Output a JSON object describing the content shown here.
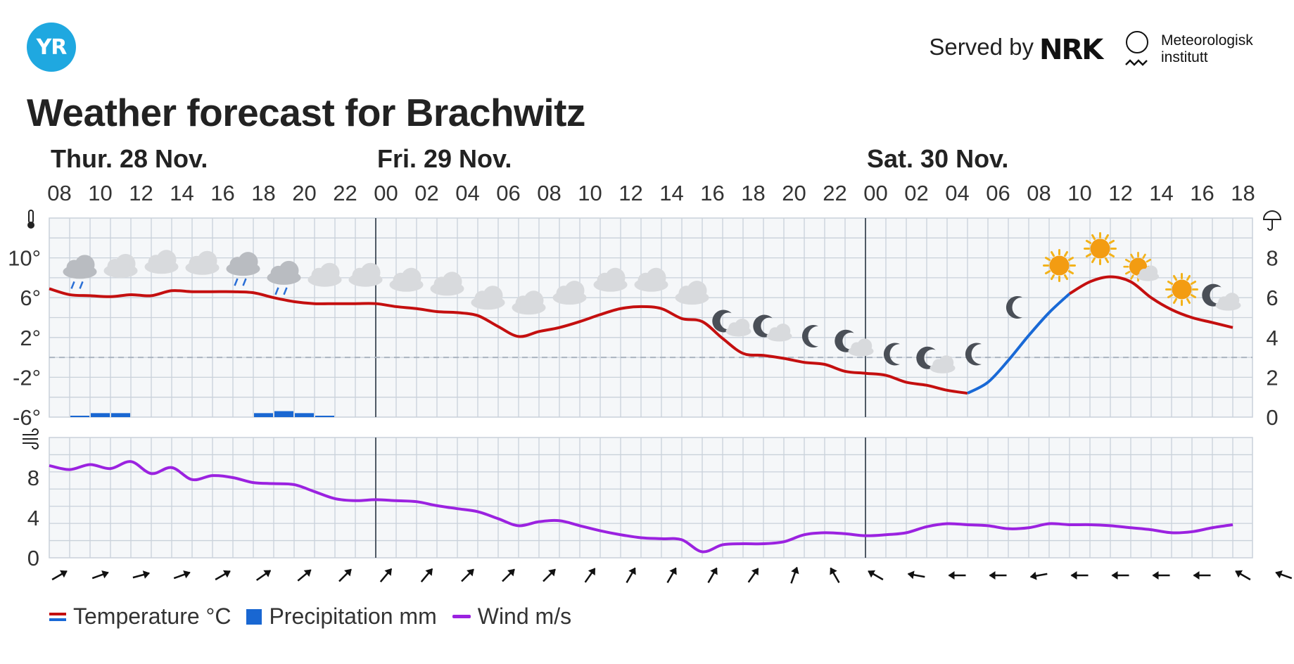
{
  "header": {
    "logo_text": "YR",
    "served_by": "Served by",
    "nrk_text": "NRK",
    "met_line1": "Meteorologisk",
    "met_line2": "institutt",
    "title": "Weather forecast for Brachwitz"
  },
  "legend": {
    "temperature": "Temperature °C",
    "precipitation": "Precipitation mm",
    "wind": "Wind m/s"
  },
  "colors": {
    "temp_warm": "#c40f0f",
    "temp_cold": "#1969d6",
    "precipitation": "#1967d2",
    "wind": "#9b22e0",
    "grid": "#c9d1da",
    "day_divider": "#505a66"
  },
  "chart_data": {
    "type": "line",
    "days": [
      {
        "label": "Thur. 28 Nov.",
        "start_hour_index": 0
      },
      {
        "label": "Fri. 29 Nov.",
        "start_hour_index": 16
      },
      {
        "label": "Sat. 30 Nov.",
        "start_hour_index": 40
      }
    ],
    "hour_ticks": [
      "08",
      "10",
      "12",
      "14",
      "16",
      "18",
      "20",
      "22",
      "00",
      "02",
      "04",
      "06",
      "08",
      "10",
      "12",
      "14",
      "16",
      "18",
      "20",
      "22",
      "00",
      "02",
      "04",
      "06",
      "08",
      "10",
      "12",
      "14",
      "16",
      "18"
    ],
    "x_hours_start": "Thur. 28 Nov. 07:00",
    "temperature": {
      "unit": "°C",
      "y_ticks": [
        "10°",
        "6°",
        "2°",
        "-2°",
        "-6°"
      ],
      "ylim": [
        -6,
        14
      ],
      "values": [
        6.9,
        6.3,
        6.2,
        6.1,
        6.3,
        6.2,
        6.7,
        6.6,
        6.6,
        6.6,
        6.5,
        6.0,
        5.6,
        5.4,
        5.4,
        5.4,
        5.4,
        5.1,
        4.9,
        4.6,
        4.5,
        4.2,
        3.1,
        2.1,
        2.6,
        3.0,
        3.6,
        4.3,
        4.9,
        5.1,
        4.9,
        3.9,
        3.6,
        1.9,
        0.4,
        0.2,
        -0.1,
        -0.5,
        -0.7,
        -1.4,
        -1.6,
        -1.8,
        -2.5,
        -2.8,
        -3.3,
        -3.6,
        -2.5,
        -0.3,
        2.2,
        4.5,
        6.4,
        7.6,
        8.1,
        7.6,
        6.0,
        4.8,
        4.0,
        3.5,
        3.0
      ],
      "cold_range_hour_indices": [
        45,
        50
      ]
    },
    "precipitation": {
      "unit": "mm",
      "right_ticks": [
        "8",
        "6",
        "4",
        "2",
        "0"
      ],
      "ylim": [
        0,
        10
      ],
      "bars": [
        {
          "hour_index": 1,
          "value": 0.05
        },
        {
          "hour_index": 2,
          "value": 0.2
        },
        {
          "hour_index": 3,
          "value": 0.2
        },
        {
          "hour_index": 10,
          "value": 0.2
        },
        {
          "hour_index": 11,
          "value": 0.3
        },
        {
          "hour_index": 12,
          "value": 0.2
        },
        {
          "hour_index": 13,
          "value": 0.05
        }
      ]
    },
    "wind": {
      "unit": "m/s",
      "y_ticks": [
        "8",
        "4",
        "0"
      ],
      "ylim": [
        0,
        12
      ],
      "values": [
        9.2,
        8.8,
        9.3,
        8.9,
        9.6,
        8.4,
        9.0,
        7.8,
        8.2,
        8.0,
        7.5,
        7.4,
        7.3,
        6.6,
        5.9,
        5.7,
        5.8,
        5.7,
        5.6,
        5.2,
        4.9,
        4.6,
        3.9,
        3.2,
        3.6,
        3.7,
        3.2,
        2.7,
        2.3,
        2.0,
        1.9,
        1.8,
        0.6,
        1.3,
        1.4,
        1.4,
        1.6,
        2.3,
        2.5,
        2.4,
        2.2,
        2.3,
        2.5,
        3.1,
        3.4,
        3.3,
        3.2,
        2.9,
        3.0,
        3.4,
        3.3,
        3.3,
        3.2,
        3.0,
        2.8,
        2.5,
        2.6,
        3.0,
        3.3
      ],
      "arrow_directions_deg": [
        240,
        250,
        255,
        250,
        240,
        235,
        230,
        225,
        220,
        220,
        225,
        225,
        225,
        215,
        210,
        210,
        210,
        215,
        200,
        150,
        120,
        100,
        90,
        90,
        80,
        90,
        90,
        90,
        90,
        120,
        110
      ]
    },
    "weather_symbols": [
      {
        "hour_index": 1.5,
        "symbol": "light-rain-icon"
      },
      {
        "hour_index": 3.5,
        "symbol": "cloudy-icon"
      },
      {
        "hour_index": 5.5,
        "symbol": "cloudy-icon"
      },
      {
        "hour_index": 7.5,
        "symbol": "cloudy-icon"
      },
      {
        "hour_index": 9.5,
        "symbol": "light-rain-icon"
      },
      {
        "hour_index": 11.5,
        "symbol": "light-rain-icon"
      },
      {
        "hour_index": 13.5,
        "symbol": "cloudy-icon"
      },
      {
        "hour_index": 15.5,
        "symbol": "cloudy-icon"
      },
      {
        "hour_index": 17.5,
        "symbol": "cloudy-icon"
      },
      {
        "hour_index": 19.5,
        "symbol": "cloudy-icon"
      },
      {
        "hour_index": 21.5,
        "symbol": "cloudy-icon"
      },
      {
        "hour_index": 23.5,
        "symbol": "cloudy-icon"
      },
      {
        "hour_index": 25.5,
        "symbol": "cloudy-icon"
      },
      {
        "hour_index": 27.5,
        "symbol": "cloudy-icon"
      },
      {
        "hour_index": 29.5,
        "symbol": "cloudy-icon"
      },
      {
        "hour_index": 31.5,
        "symbol": "cloudy-icon"
      },
      {
        "hour_index": 33.5,
        "symbol": "partly-cloudy-night-icon"
      },
      {
        "hour_index": 35.5,
        "symbol": "partly-cloudy-night-icon"
      },
      {
        "hour_index": 37.5,
        "symbol": "clear-night-icon"
      },
      {
        "hour_index": 39.5,
        "symbol": "partly-cloudy-night-icon"
      },
      {
        "hour_index": 41.5,
        "symbol": "clear-night-icon"
      },
      {
        "hour_index": 43.5,
        "symbol": "partly-cloudy-night-icon"
      },
      {
        "hour_index": 45.5,
        "symbol": "clear-night-icon"
      },
      {
        "hour_index": 47.5,
        "symbol": "clear-night-icon"
      },
      {
        "hour_index": 49.5,
        "symbol": "clear-sun-icon"
      },
      {
        "hour_index": 51.5,
        "symbol": "clear-sun-icon"
      },
      {
        "hour_index": 53.5,
        "symbol": "partly-cloudy-day-icon"
      },
      {
        "hour_index": 55.5,
        "symbol": "clear-sun-icon"
      },
      {
        "hour_index": 57.5,
        "symbol": "partly-cloudy-night-icon"
      }
    ]
  }
}
